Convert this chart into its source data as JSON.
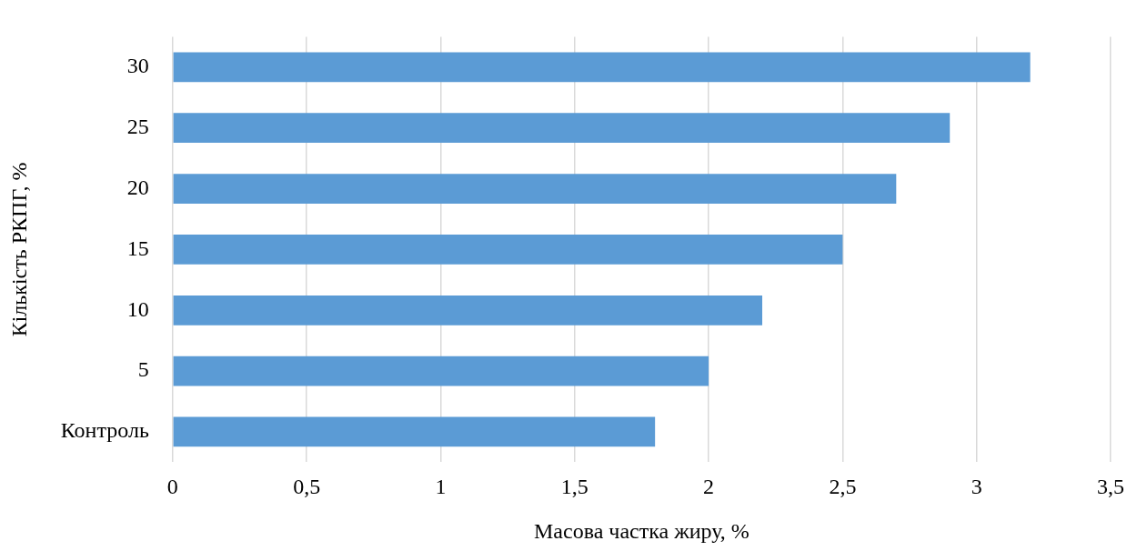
{
  "chart_data": {
    "type": "bar",
    "orientation": "horizontal",
    "xlabel": "Масова частка жиру, %",
    "ylabel": "Кількість РКПГ, %",
    "categories": [
      "30",
      "25",
      "20",
      "15",
      "10",
      "5",
      "Контроль"
    ],
    "values": [
      3.2,
      2.9,
      2.7,
      2.5,
      2.2,
      2.0,
      1.8
    ],
    "color": "#5b9bd5",
    "xlim": [
      0,
      3.5
    ],
    "xticks": [
      0,
      {
        "value": 0.5,
        "label": "0,5"
      },
      1,
      {
        "value": 1.5,
        "label": "1,5"
      },
      2,
      {
        "value": 2.5,
        "label": "2,5"
      },
      3,
      {
        "value": 3.5,
        "label": "3,5"
      }
    ],
    "grid": "x",
    "legend": false
  }
}
